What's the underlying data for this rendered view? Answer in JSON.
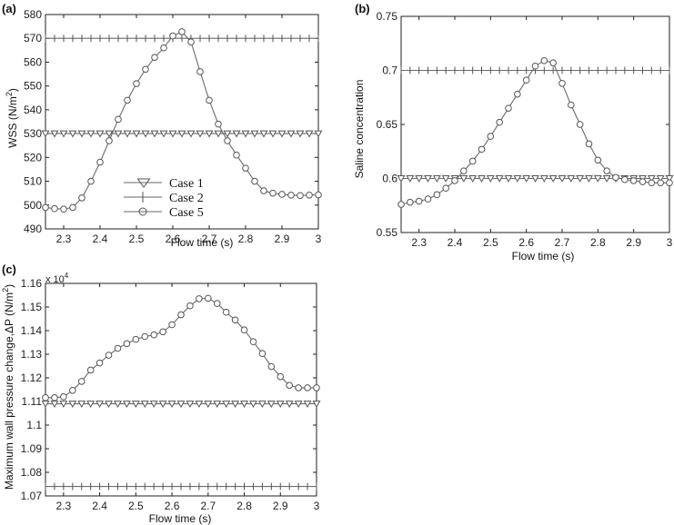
{
  "chart_data": [
    {
      "type": "line",
      "panel_label": "(a)",
      "xlabel": "Flow time (s)",
      "ylabel_prefix": "WSS (N/m",
      "ylabel_sup": "2",
      "ylabel_suffix": ")",
      "xlim": [
        2.25,
        3.0
      ],
      "ylim": [
        490,
        580
      ],
      "xticks": [
        "2.3",
        "2.4",
        "2.5",
        "2.6",
        "2.7",
        "2.8",
        "2.9",
        "3"
      ],
      "yticks": [
        "490",
        "500",
        "510",
        "520",
        "530",
        "540",
        "550",
        "560",
        "570",
        "580"
      ],
      "legend": {
        "placement": "lower-left",
        "entries": [
          "Case 1",
          "Case 2",
          "Case 5"
        ]
      },
      "series": [
        {
          "name": "Case 1",
          "marker": "triangle-down",
          "x": [
            2.25,
            2.275,
            2.3,
            2.325,
            2.35,
            2.375,
            2.4,
            2.425,
            2.45,
            2.475,
            2.5,
            2.525,
            2.55,
            2.575,
            2.6,
            2.625,
            2.65,
            2.675,
            2.7,
            2.725,
            2.75,
            2.775,
            2.8,
            2.825,
            2.85,
            2.875,
            2.9,
            2.925,
            2.95,
            2.975,
            3.0
          ],
          "y": [
            530,
            530,
            530,
            530,
            530,
            530,
            530,
            530,
            530,
            530,
            530,
            530,
            530,
            530,
            530,
            530,
            530,
            530,
            530,
            530,
            530,
            530,
            530,
            530,
            530,
            530,
            530,
            530,
            530,
            530,
            530
          ]
        },
        {
          "name": "Case 2",
          "marker": "plus",
          "x": [
            2.25,
            2.275,
            2.3,
            2.325,
            2.35,
            2.375,
            2.4,
            2.425,
            2.45,
            2.475,
            2.5,
            2.525,
            2.55,
            2.575,
            2.6,
            2.625,
            2.65,
            2.675,
            2.7,
            2.725,
            2.75,
            2.775,
            2.8,
            2.825,
            2.85,
            2.875,
            2.9,
            2.925,
            2.95,
            2.975,
            3.0
          ],
          "y": [
            570,
            570,
            570,
            570,
            570,
            570,
            570,
            570,
            570,
            570,
            570,
            570,
            570,
            570,
            570,
            570,
            570,
            570,
            570,
            570,
            570,
            570,
            570,
            570,
            570,
            570,
            570,
            570,
            570,
            570,
            570
          ]
        },
        {
          "name": "Case 5",
          "marker": "circle",
          "x": [
            2.25,
            2.275,
            2.3,
            2.325,
            2.35,
            2.375,
            2.4,
            2.425,
            2.45,
            2.475,
            2.5,
            2.525,
            2.55,
            2.575,
            2.6,
            2.625,
            2.65,
            2.675,
            2.7,
            2.725,
            2.75,
            2.775,
            2.8,
            2.825,
            2.85,
            2.875,
            2.9,
            2.925,
            2.95,
            2.975,
            3.0
          ],
          "y": [
            499,
            498.5,
            498.3,
            499,
            503,
            510,
            518,
            527,
            536,
            544,
            551,
            557,
            562,
            566,
            571,
            572.8,
            568.5,
            556,
            544,
            534,
            527,
            521,
            515.5,
            510,
            506,
            505,
            504.5,
            504.2,
            504,
            504.2,
            504.3
          ]
        }
      ]
    },
    {
      "type": "line",
      "panel_label": "(b)",
      "xlabel": "Flow time (s)",
      "ylabel": "Saline concentration",
      "xlim": [
        2.25,
        3.0
      ],
      "ylim": [
        0.55,
        0.75
      ],
      "xticks": [
        "2.3",
        "2.4",
        "2.5",
        "2.6",
        "2.7",
        "2.8",
        "2.9",
        "3"
      ],
      "yticks": [
        "0.55",
        "0.6",
        "0.65",
        "0.7",
        "0.75"
      ],
      "series": [
        {
          "name": "Case 1",
          "marker": "triangle-down",
          "x": [
            2.25,
            2.275,
            2.3,
            2.325,
            2.35,
            2.375,
            2.4,
            2.425,
            2.45,
            2.475,
            2.5,
            2.525,
            2.55,
            2.575,
            2.6,
            2.625,
            2.65,
            2.675,
            2.7,
            2.725,
            2.75,
            2.775,
            2.8,
            2.825,
            2.85,
            2.875,
            2.9,
            2.925,
            2.95,
            2.975,
            3.0
          ],
          "y": [
            0.6,
            0.6,
            0.6,
            0.6,
            0.6,
            0.6,
            0.6,
            0.6,
            0.6,
            0.6,
            0.6,
            0.6,
            0.6,
            0.6,
            0.6,
            0.6,
            0.6,
            0.6,
            0.6,
            0.6,
            0.6,
            0.6,
            0.6,
            0.6,
            0.6,
            0.6,
            0.6,
            0.6,
            0.6,
            0.6,
            0.6
          ]
        },
        {
          "name": "Case 2",
          "marker": "plus",
          "x": [
            2.25,
            2.275,
            2.3,
            2.325,
            2.35,
            2.375,
            2.4,
            2.425,
            2.45,
            2.475,
            2.5,
            2.525,
            2.55,
            2.575,
            2.6,
            2.625,
            2.65,
            2.675,
            2.7,
            2.725,
            2.75,
            2.775,
            2.8,
            2.825,
            2.85,
            2.875,
            2.9,
            2.925,
            2.95,
            2.975,
            3.0
          ],
          "y": [
            0.7,
            0.7,
            0.7,
            0.7,
            0.7,
            0.7,
            0.7,
            0.7,
            0.7,
            0.7,
            0.7,
            0.7,
            0.7,
            0.7,
            0.7,
            0.7,
            0.7,
            0.7,
            0.7,
            0.7,
            0.7,
            0.7,
            0.7,
            0.7,
            0.7,
            0.7,
            0.7,
            0.7,
            0.7,
            0.7,
            0.7
          ]
        },
        {
          "name": "Case 5",
          "marker": "circle",
          "x": [
            2.25,
            2.275,
            2.3,
            2.325,
            2.35,
            2.375,
            2.4,
            2.425,
            2.45,
            2.475,
            2.5,
            2.525,
            2.55,
            2.575,
            2.6,
            2.625,
            2.65,
            2.675,
            2.7,
            2.725,
            2.75,
            2.775,
            2.8,
            2.825,
            2.85,
            2.875,
            2.9,
            2.925,
            2.95,
            2.975,
            3.0
          ],
          "y": [
            0.576,
            0.578,
            0.579,
            0.581,
            0.585,
            0.591,
            0.598,
            0.607,
            0.616,
            0.627,
            0.639,
            0.652,
            0.665,
            0.678,
            0.691,
            0.704,
            0.709,
            0.707,
            0.688,
            0.668,
            0.65,
            0.632,
            0.617,
            0.607,
            0.601,
            0.599,
            0.598,
            0.597,
            0.596,
            0.596,
            0.596
          ]
        }
      ]
    },
    {
      "type": "line",
      "panel_label": "(c)",
      "xlabel": "Flow time (s)",
      "ylabel_prefix": "Maximum wall pressure change,ΔP (N/m",
      "ylabel_sup": "2",
      "ylabel_suffix": ")",
      "multiplier_base": "x 10",
      "multiplier_exp": "4",
      "xlim": [
        2.25,
        3.0
      ],
      "ylim": [
        1.07,
        1.16
      ],
      "xticks": [
        "2.3",
        "2.4",
        "2.5",
        "2.6",
        "2.7",
        "2.8",
        "2.9",
        "3"
      ],
      "yticks": [
        "1.07",
        "1.08",
        "1.09",
        "1.1",
        "1.11",
        "1.12",
        "1.13",
        "1.14",
        "1.15",
        "1.16"
      ],
      "series": [
        {
          "name": "Case 1",
          "marker": "triangle-down",
          "x": [
            2.25,
            2.275,
            2.3,
            2.325,
            2.35,
            2.375,
            2.4,
            2.425,
            2.45,
            2.475,
            2.5,
            2.525,
            2.55,
            2.575,
            2.6,
            2.625,
            2.65,
            2.675,
            2.7,
            2.725,
            2.75,
            2.775,
            2.8,
            2.825,
            2.85,
            2.875,
            2.9,
            2.925,
            2.95,
            2.975,
            3.0
          ],
          "y": [
            1.109,
            1.109,
            1.109,
            1.109,
            1.109,
            1.109,
            1.109,
            1.109,
            1.109,
            1.109,
            1.109,
            1.109,
            1.109,
            1.109,
            1.109,
            1.109,
            1.109,
            1.109,
            1.109,
            1.109,
            1.109,
            1.109,
            1.109,
            1.109,
            1.109,
            1.109,
            1.109,
            1.109,
            1.109,
            1.109,
            1.109
          ]
        },
        {
          "name": "Case 2",
          "marker": "plus",
          "x": [
            2.25,
            2.275,
            2.3,
            2.325,
            2.35,
            2.375,
            2.4,
            2.425,
            2.45,
            2.475,
            2.5,
            2.525,
            2.55,
            2.575,
            2.6,
            2.625,
            2.65,
            2.675,
            2.7,
            2.725,
            2.75,
            2.775,
            2.8,
            2.825,
            2.85,
            2.875,
            2.9,
            2.925,
            2.95,
            2.975,
            3.0
          ],
          "y": [
            1.074,
            1.074,
            1.074,
            1.074,
            1.074,
            1.074,
            1.074,
            1.074,
            1.074,
            1.074,
            1.074,
            1.074,
            1.074,
            1.074,
            1.074,
            1.074,
            1.074,
            1.074,
            1.074,
            1.074,
            1.074,
            1.074,
            1.074,
            1.074,
            1.074,
            1.074,
            1.074,
            1.074,
            1.074,
            1.074,
            1.074
          ]
        },
        {
          "name": "Case 5",
          "marker": "circle",
          "x": [
            2.25,
            2.275,
            2.3,
            2.325,
            2.35,
            2.375,
            2.4,
            2.425,
            2.45,
            2.475,
            2.5,
            2.525,
            2.55,
            2.575,
            2.6,
            2.625,
            2.65,
            2.675,
            2.7,
            2.725,
            2.75,
            2.775,
            2.8,
            2.825,
            2.85,
            2.875,
            2.9,
            2.925,
            2.95,
            2.975,
            3.0
          ],
          "y": [
            1.1116,
            1.1116,
            1.112,
            1.1147,
            1.1185,
            1.1233,
            1.1263,
            1.1296,
            1.1325,
            1.1345,
            1.1363,
            1.1375,
            1.1382,
            1.1395,
            1.1425,
            1.1467,
            1.1505,
            1.1535,
            1.1537,
            1.1515,
            1.1478,
            1.1445,
            1.1403,
            1.1353,
            1.1303,
            1.1248,
            1.1205,
            1.1168,
            1.1158,
            1.1158,
            1.1158
          ]
        }
      ]
    }
  ]
}
